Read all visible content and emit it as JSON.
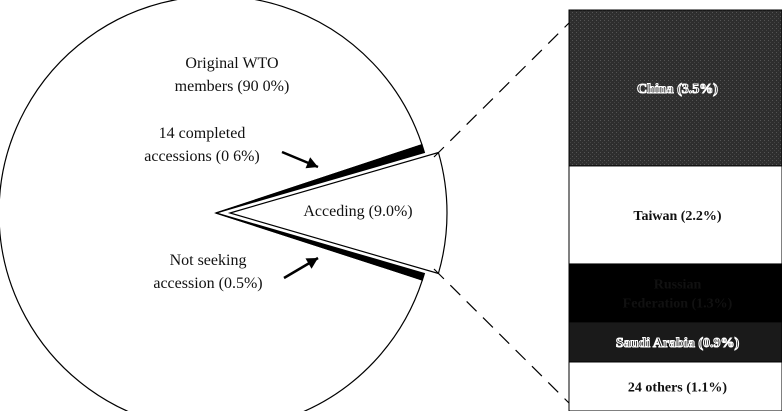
{
  "chart_data": [
    {
      "type": "pie",
      "slices": [
        {
          "name": "Original WTO members",
          "label": "Original WTO members (90 0%)",
          "label_lines": [
            "Original WTO",
            "members (90 0%)"
          ],
          "value": 90.0,
          "fill": "#ffffff"
        },
        {
          "name": "14 completed accessions",
          "label": "14 completed accessions (0 6%)",
          "label_lines": [
            "14 completed",
            "accessions (0 6%)"
          ],
          "value": 0.6,
          "fill": "#000000"
        },
        {
          "name": "Acceding",
          "label": "Acceding (9.0%)",
          "label_lines": [
            "Acceding (9.0%)"
          ],
          "value": 9.0,
          "fill": "#ffffff",
          "exploded": true
        },
        {
          "name": "Not seeking accession",
          "label": "Not seeking accession (0.5%)",
          "label_lines": [
            "Not seeking",
            "accession (0.5%)"
          ],
          "value": 0.5,
          "fill": "#000000"
        }
      ]
    },
    {
      "type": "bar",
      "stacked": true,
      "segments": [
        {
          "name": "China",
          "label": "China (3.5%)",
          "label_lines": [
            "China (3.5%)"
          ],
          "value": 3.5,
          "fill": "#2e2e2e",
          "text_color": "#ffffff",
          "outlined_text": true
        },
        {
          "name": "Taiwan",
          "label": "Taiwan (2.2%)",
          "label_lines": [
            "Taiwan (2.2%)"
          ],
          "value": 2.2,
          "fill": "#ffffff",
          "text_color": "#111111",
          "outlined_text": false
        },
        {
          "name": "Russian Federation",
          "label": "Russian Federation (1.3%)",
          "label_lines": [
            "Russian",
            "Federation (1.3%)"
          ],
          "value": 1.3,
          "fill": "#000000",
          "text_color": "#ffffff",
          "outlined_text": false
        },
        {
          "name": "Saudi Arabia",
          "label": "Saudi Arabia (0.9%)",
          "label_lines": [
            "Saudi Arabia (0.9%)"
          ],
          "value": 0.9,
          "fill": "#1a1a1a",
          "text_color": "#ffffff",
          "outlined_text": true
        },
        {
          "name": "24 others",
          "label": "24 others (1.1%)",
          "label_lines": [
            "24 others (1.1%)"
          ],
          "value": 1.1,
          "fill": "#ffffff",
          "text_color": "#111111",
          "outlined_text": false
        }
      ]
    }
  ]
}
